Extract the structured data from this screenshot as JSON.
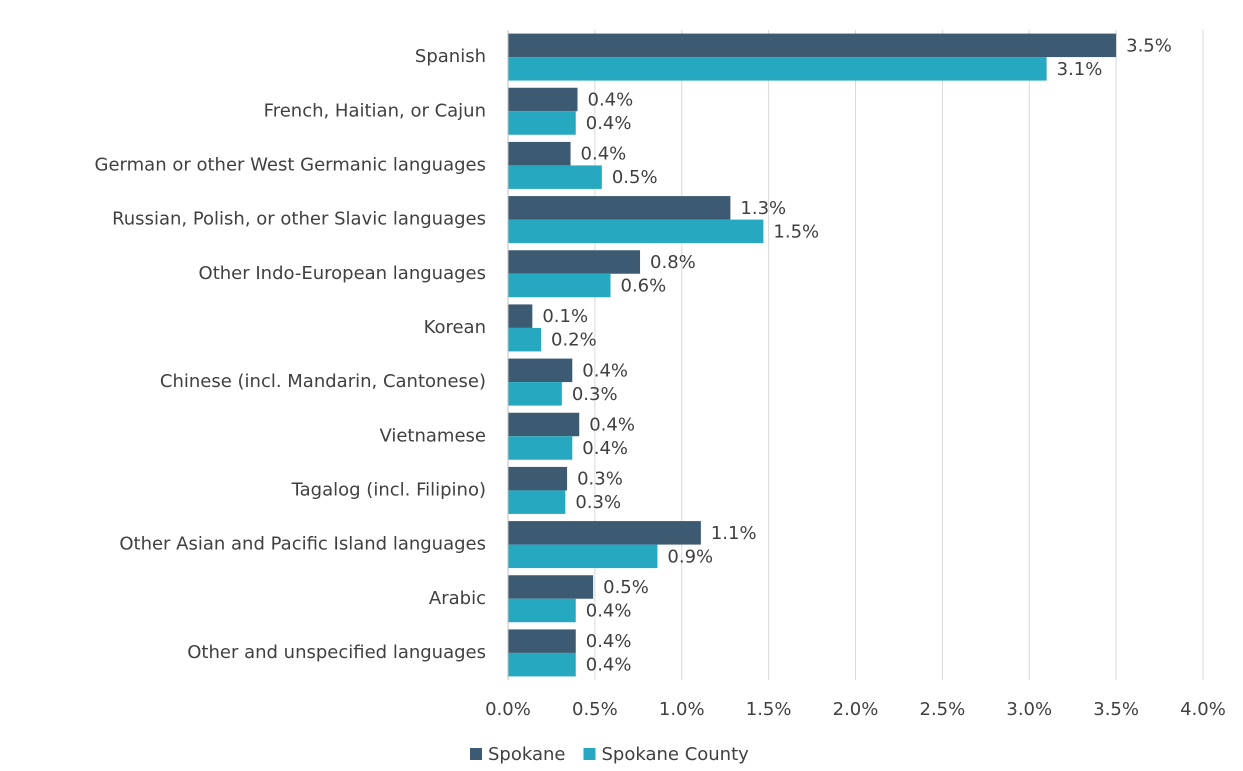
{
  "chart_data": {
    "type": "bar",
    "orientation": "horizontal",
    "categories": [
      "Spanish",
      "French, Haitian, or Cajun",
      "German or other West Germanic languages",
      "Russian, Polish, or other Slavic languages",
      "Other Indo-European languages",
      "Korean",
      "Chinese (incl. Mandarin, Cantonese)",
      "Vietnamese",
      "Tagalog (incl. Filipino)",
      "Other Asian and Pacific Island languages",
      "Arabic",
      "Other and unspecified languages"
    ],
    "series": [
      {
        "name": "Spokane",
        "color": "#3d5a73",
        "values": [
          3.5,
          0.4,
          0.36,
          1.28,
          0.76,
          0.14,
          0.37,
          0.41,
          0.34,
          1.11,
          0.49,
          0.39
        ],
        "value_labels": [
          "3.5%",
          "0.4%",
          "0.4%",
          "1.3%",
          "0.8%",
          "0.1%",
          "0.4%",
          "0.4%",
          "0.3%",
          "1.1%",
          "0.5%",
          "0.4%"
        ]
      },
      {
        "name": "Spokane County",
        "color": "#26a9c0",
        "values": [
          3.1,
          0.39,
          0.54,
          1.47,
          0.59,
          0.19,
          0.31,
          0.37,
          0.33,
          0.86,
          0.39,
          0.39
        ],
        "value_labels": [
          "3.1%",
          "0.4%",
          "0.5%",
          "1.5%",
          "0.6%",
          "0.2%",
          "0.3%",
          "0.4%",
          "0.3%",
          "0.9%",
          "0.4%",
          "0.4%"
        ]
      }
    ],
    "xlim": [
      0,
      4
    ],
    "xticks": [
      {
        "value": 0,
        "label": "0.0%"
      },
      {
        "value": 0.5,
        "label": "0.5%"
      },
      {
        "value": 1,
        "label": "1.0%"
      },
      {
        "value": 1.5,
        "label": "1.5%"
      },
      {
        "value": 2,
        "label": "2.0%"
      },
      {
        "value": 2.5,
        "label": "2.5%"
      },
      {
        "value": 3,
        "label": "3.0%"
      },
      {
        "value": 3.5,
        "label": "3.5%"
      },
      {
        "value": 4,
        "label": "4.0%"
      }
    ],
    "grid": true,
    "legend": "bottom"
  }
}
